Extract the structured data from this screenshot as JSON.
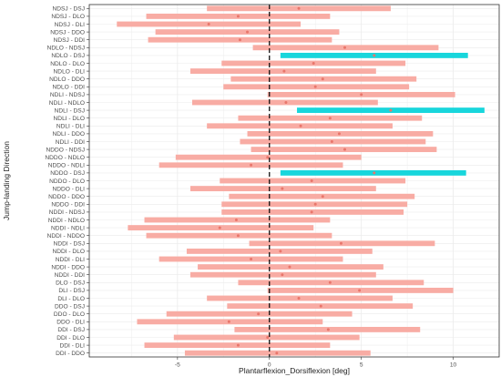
{
  "chart_data": {
    "type": "forest",
    "xlabel": "Plantarflexion_Dorsiflexion [deg]",
    "ylabel": "Jump-landing Direction",
    "xlim": [
      -9.8,
      12.5
    ],
    "xticks": [
      -5,
      0,
      5,
      10
    ],
    "reference_line_x": 0,
    "grid": true,
    "colors": {
      "interval": "#f8aca4",
      "significant": "#18d6dc",
      "point": "#e8766b",
      "refline": "#111111",
      "grid": "#ebebeb",
      "panel_border": "#333333"
    },
    "rows": [
      {
        "label": "NDSJ - DSJ",
        "estimate": 1.6,
        "lower": -3.4,
        "upper": 6.6,
        "significant": false
      },
      {
        "label": "NDSJ - DLO",
        "estimate": -1.7,
        "lower": -6.7,
        "upper": 3.3,
        "significant": false
      },
      {
        "label": "NDSJ - DLI",
        "estimate": -3.3,
        "lower": -8.3,
        "upper": 1.7,
        "significant": false
      },
      {
        "label": "NDSJ - DDO",
        "estimate": -1.2,
        "lower": -6.2,
        "upper": 3.8,
        "significant": false
      },
      {
        "label": "NDSJ - DDI",
        "estimate": -1.6,
        "lower": -6.6,
        "upper": 3.4,
        "significant": false
      },
      {
        "label": "NDLO - NDSJ",
        "estimate": 4.1,
        "lower": -0.9,
        "upper": 9.2,
        "significant": false
      },
      {
        "label": "NDLO - DSJ",
        "estimate": 5.7,
        "lower": 0.6,
        "upper": 10.8,
        "significant": true
      },
      {
        "label": "NDLO - DLO",
        "estimate": 2.4,
        "lower": -2.6,
        "upper": 7.4,
        "significant": false
      },
      {
        "label": "NDLO - DLI",
        "estimate": 0.8,
        "lower": -4.3,
        "upper": 5.8,
        "significant": false
      },
      {
        "label": "NDLO - DDO",
        "estimate": 2.9,
        "lower": -2.1,
        "upper": 8.0,
        "significant": false
      },
      {
        "label": "NDLO - DDI",
        "estimate": 2.5,
        "lower": -2.5,
        "upper": 7.6,
        "significant": false
      },
      {
        "label": "NDLI - NDSJ",
        "estimate": 5.0,
        "lower": -0.1,
        "upper": 10.1,
        "significant": false
      },
      {
        "label": "NDLI - NDLO",
        "estimate": 0.9,
        "lower": -4.2,
        "upper": 5.9,
        "significant": false
      },
      {
        "label": "NDLI - DSJ",
        "estimate": 6.6,
        "lower": 1.5,
        "upper": 11.7,
        "significant": true
      },
      {
        "label": "NDLI - DLO",
        "estimate": 3.3,
        "lower": -1.7,
        "upper": 8.3,
        "significant": false
      },
      {
        "label": "NDLI - DLI",
        "estimate": 1.7,
        "lower": -3.4,
        "upper": 6.7,
        "significant": false
      },
      {
        "label": "NDLI - DDO",
        "estimate": 3.8,
        "lower": -1.2,
        "upper": 8.9,
        "significant": false
      },
      {
        "label": "NDLI - DDI",
        "estimate": 3.4,
        "lower": -1.6,
        "upper": 8.5,
        "significant": false
      },
      {
        "label": "NDDO - NDSJ",
        "estimate": 4.1,
        "lower": -1.0,
        "upper": 9.1,
        "significant": false
      },
      {
        "label": "NDDO - NDLO",
        "estimate": -0.1,
        "lower": -5.1,
        "upper": 5.0,
        "significant": false
      },
      {
        "label": "NDDO - NDLI",
        "estimate": -1.0,
        "lower": -6.0,
        "upper": 4.0,
        "significant": false
      },
      {
        "label": "NDDO - DSJ",
        "estimate": 5.7,
        "lower": 0.6,
        "upper": 10.7,
        "significant": true
      },
      {
        "label": "NDDO - DLO",
        "estimate": 2.3,
        "lower": -2.7,
        "upper": 7.4,
        "significant": false
      },
      {
        "label": "NDDO - DLI",
        "estimate": 0.7,
        "lower": -4.3,
        "upper": 5.8,
        "significant": false
      },
      {
        "label": "NDDO - DDO",
        "estimate": 2.9,
        "lower": -2.2,
        "upper": 7.9,
        "significant": false
      },
      {
        "label": "NDDO - DDI",
        "estimate": 2.5,
        "lower": -2.6,
        "upper": 7.5,
        "significant": false
      },
      {
        "label": "NDDI - NDSJ",
        "estimate": 2.3,
        "lower": -2.6,
        "upper": 7.3,
        "significant": false
      },
      {
        "label": "NDDI - NDLO",
        "estimate": -1.8,
        "lower": -6.8,
        "upper": 3.3,
        "significant": false
      },
      {
        "label": "NDDI - NDLI",
        "estimate": -2.7,
        "lower": -7.7,
        "upper": 2.4,
        "significant": false
      },
      {
        "label": "NDDI - NDDO",
        "estimate": -1.7,
        "lower": -6.7,
        "upper": 3.4,
        "significant": false
      },
      {
        "label": "NDDI - DSJ",
        "estimate": 3.9,
        "lower": -1.1,
        "upper": 9.0,
        "significant": false
      },
      {
        "label": "NDDI - DLO",
        "estimate": 0.6,
        "lower": -4.5,
        "upper": 5.6,
        "significant": false
      },
      {
        "label": "NDDI - DLI",
        "estimate": -1.0,
        "lower": -6.0,
        "upper": 4.0,
        "significant": false
      },
      {
        "label": "NDDI - DDO",
        "estimate": 1.1,
        "lower": -3.9,
        "upper": 6.2,
        "significant": false
      },
      {
        "label": "NDDI - DDI",
        "estimate": 0.7,
        "lower": -4.3,
        "upper": 5.8,
        "significant": false
      },
      {
        "label": "DLO - DSJ",
        "estimate": 3.3,
        "lower": -1.7,
        "upper": 8.4,
        "significant": false
      },
      {
        "label": "DLI - DSJ",
        "estimate": 4.9,
        "lower": -0.1,
        "upper": 10.0,
        "significant": false
      },
      {
        "label": "DLI - DLO",
        "estimate": 1.6,
        "lower": -3.4,
        "upper": 6.7,
        "significant": false
      },
      {
        "label": "DDO - DSJ",
        "estimate": 2.8,
        "lower": -2.3,
        "upper": 7.8,
        "significant": false
      },
      {
        "label": "DDO - DLO",
        "estimate": -0.6,
        "lower": -5.6,
        "upper": 4.5,
        "significant": false
      },
      {
        "label": "DDO - DLI",
        "estimate": -2.2,
        "lower": -7.2,
        "upper": 2.9,
        "significant": false
      },
      {
        "label": "DDI - DSJ",
        "estimate": 3.2,
        "lower": -1.9,
        "upper": 8.2,
        "significant": false
      },
      {
        "label": "DDI - DLO",
        "estimate": -0.1,
        "lower": -5.2,
        "upper": 4.9,
        "significant": false
      },
      {
        "label": "DDI - DLI",
        "estimate": -1.7,
        "lower": -6.8,
        "upper": 3.3,
        "significant": false
      },
      {
        "label": "DDI - DDO",
        "estimate": 0.4,
        "lower": -4.6,
        "upper": 5.5,
        "significant": false
      }
    ]
  }
}
